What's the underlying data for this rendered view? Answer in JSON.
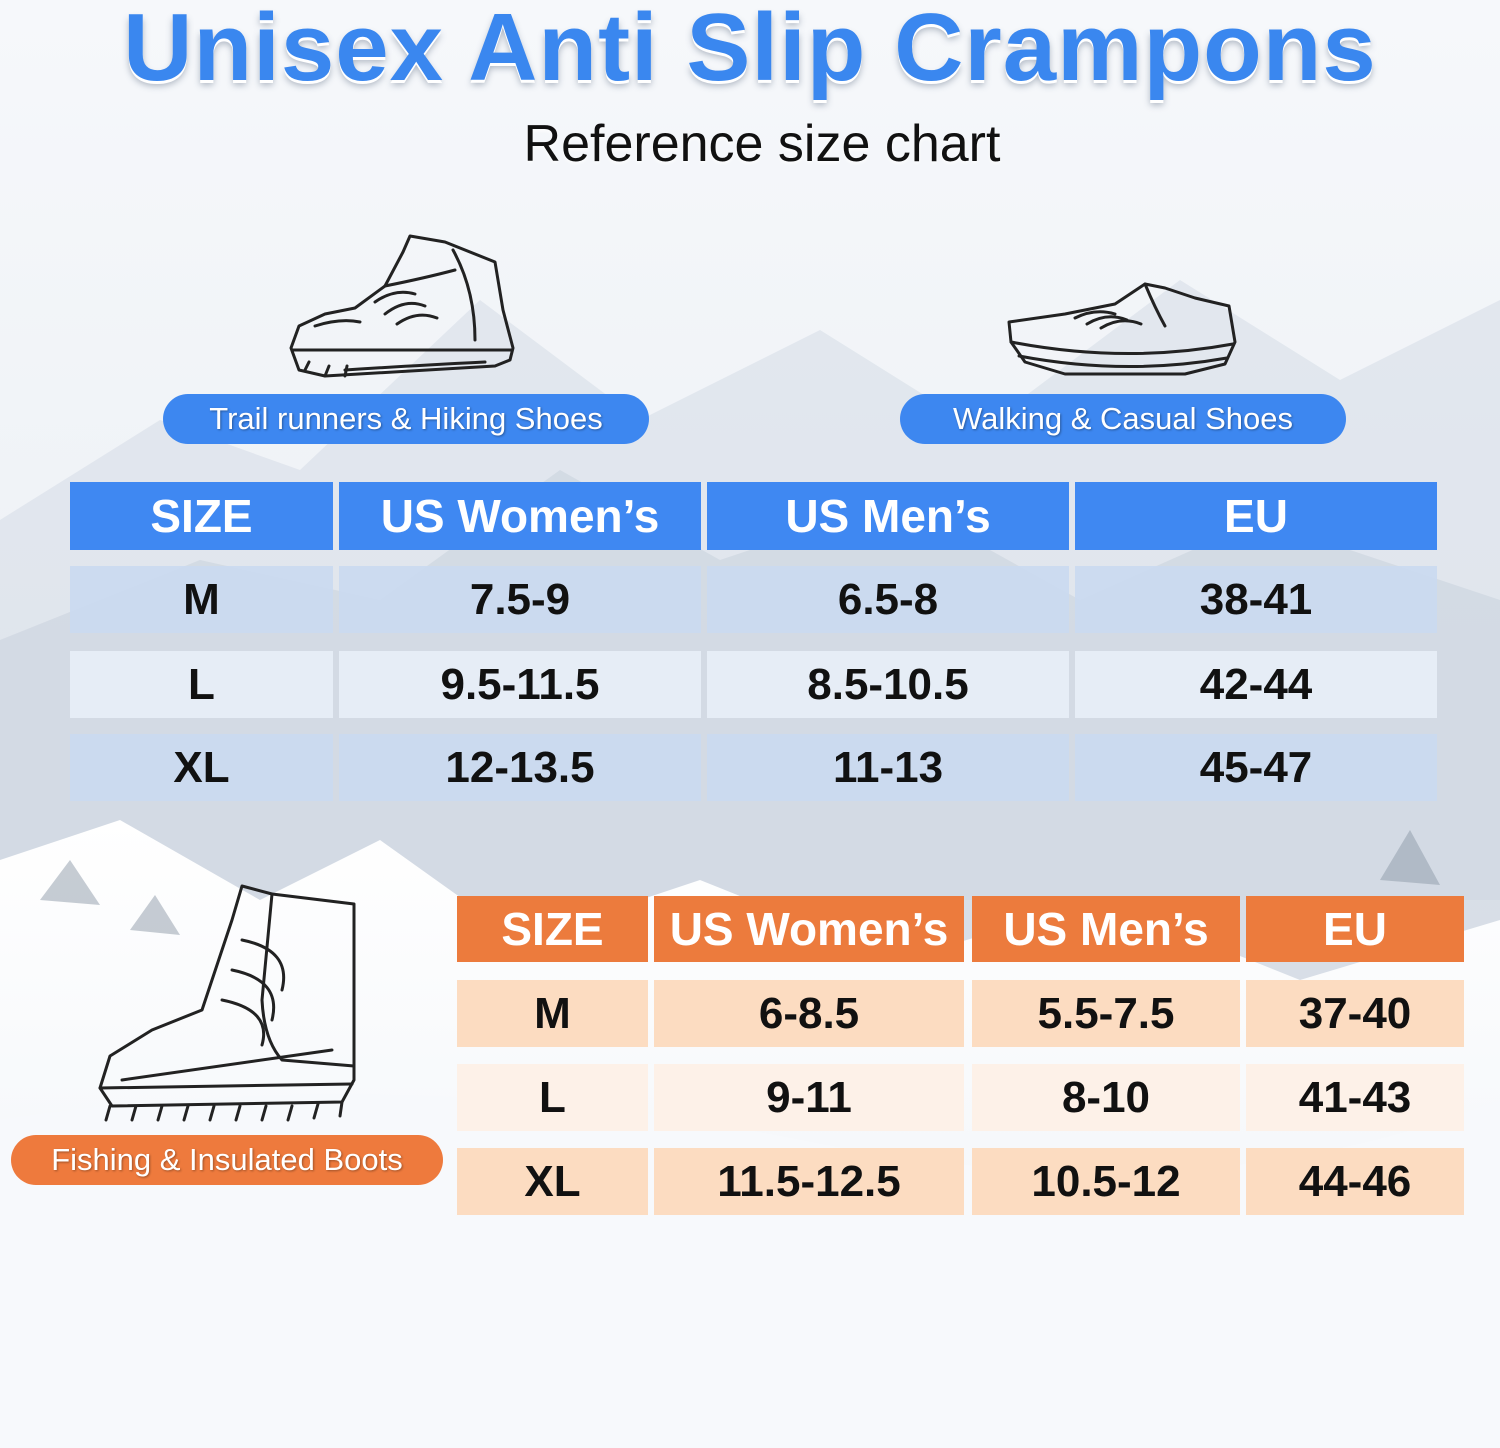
{
  "title": "Unisex Anti Slip Crampons",
  "subtitle": "Reference size chart",
  "colors": {
    "blue": "#3f88f2",
    "orange": "#ec7b3d"
  },
  "shoe_types": {
    "trail": {
      "label": "Trail runners & Hiking Shoes",
      "icon": "hiking-shoe-icon"
    },
    "walking": {
      "label": "Walking & Casual Shoes",
      "icon": "casual-shoe-icon"
    },
    "fishing": {
      "label": "Fishing & Insulated Boots",
      "icon": "insulated-boot-icon"
    }
  },
  "table_blue": {
    "headers": [
      "SIZE",
      "US Women’s",
      "US Men’s",
      "EU"
    ],
    "rows": [
      [
        "M",
        "7.5-9",
        "6.5-8",
        "38-41"
      ],
      [
        "L",
        "9.5-11.5",
        "8.5-10.5",
        "42-44"
      ],
      [
        "XL",
        "12-13.5",
        "11-13",
        "45-47"
      ]
    ]
  },
  "table_orange": {
    "headers": [
      "SIZE",
      "US Women’s",
      "US Men’s",
      "EU"
    ],
    "rows": [
      [
        "M",
        "6-8.5",
        "5.5-7.5",
        "37-40"
      ],
      [
        "L",
        "9-11",
        "8-10",
        "41-43"
      ],
      [
        "XL",
        "11.5-12.5",
        "10.5-12",
        "44-46"
      ]
    ]
  }
}
